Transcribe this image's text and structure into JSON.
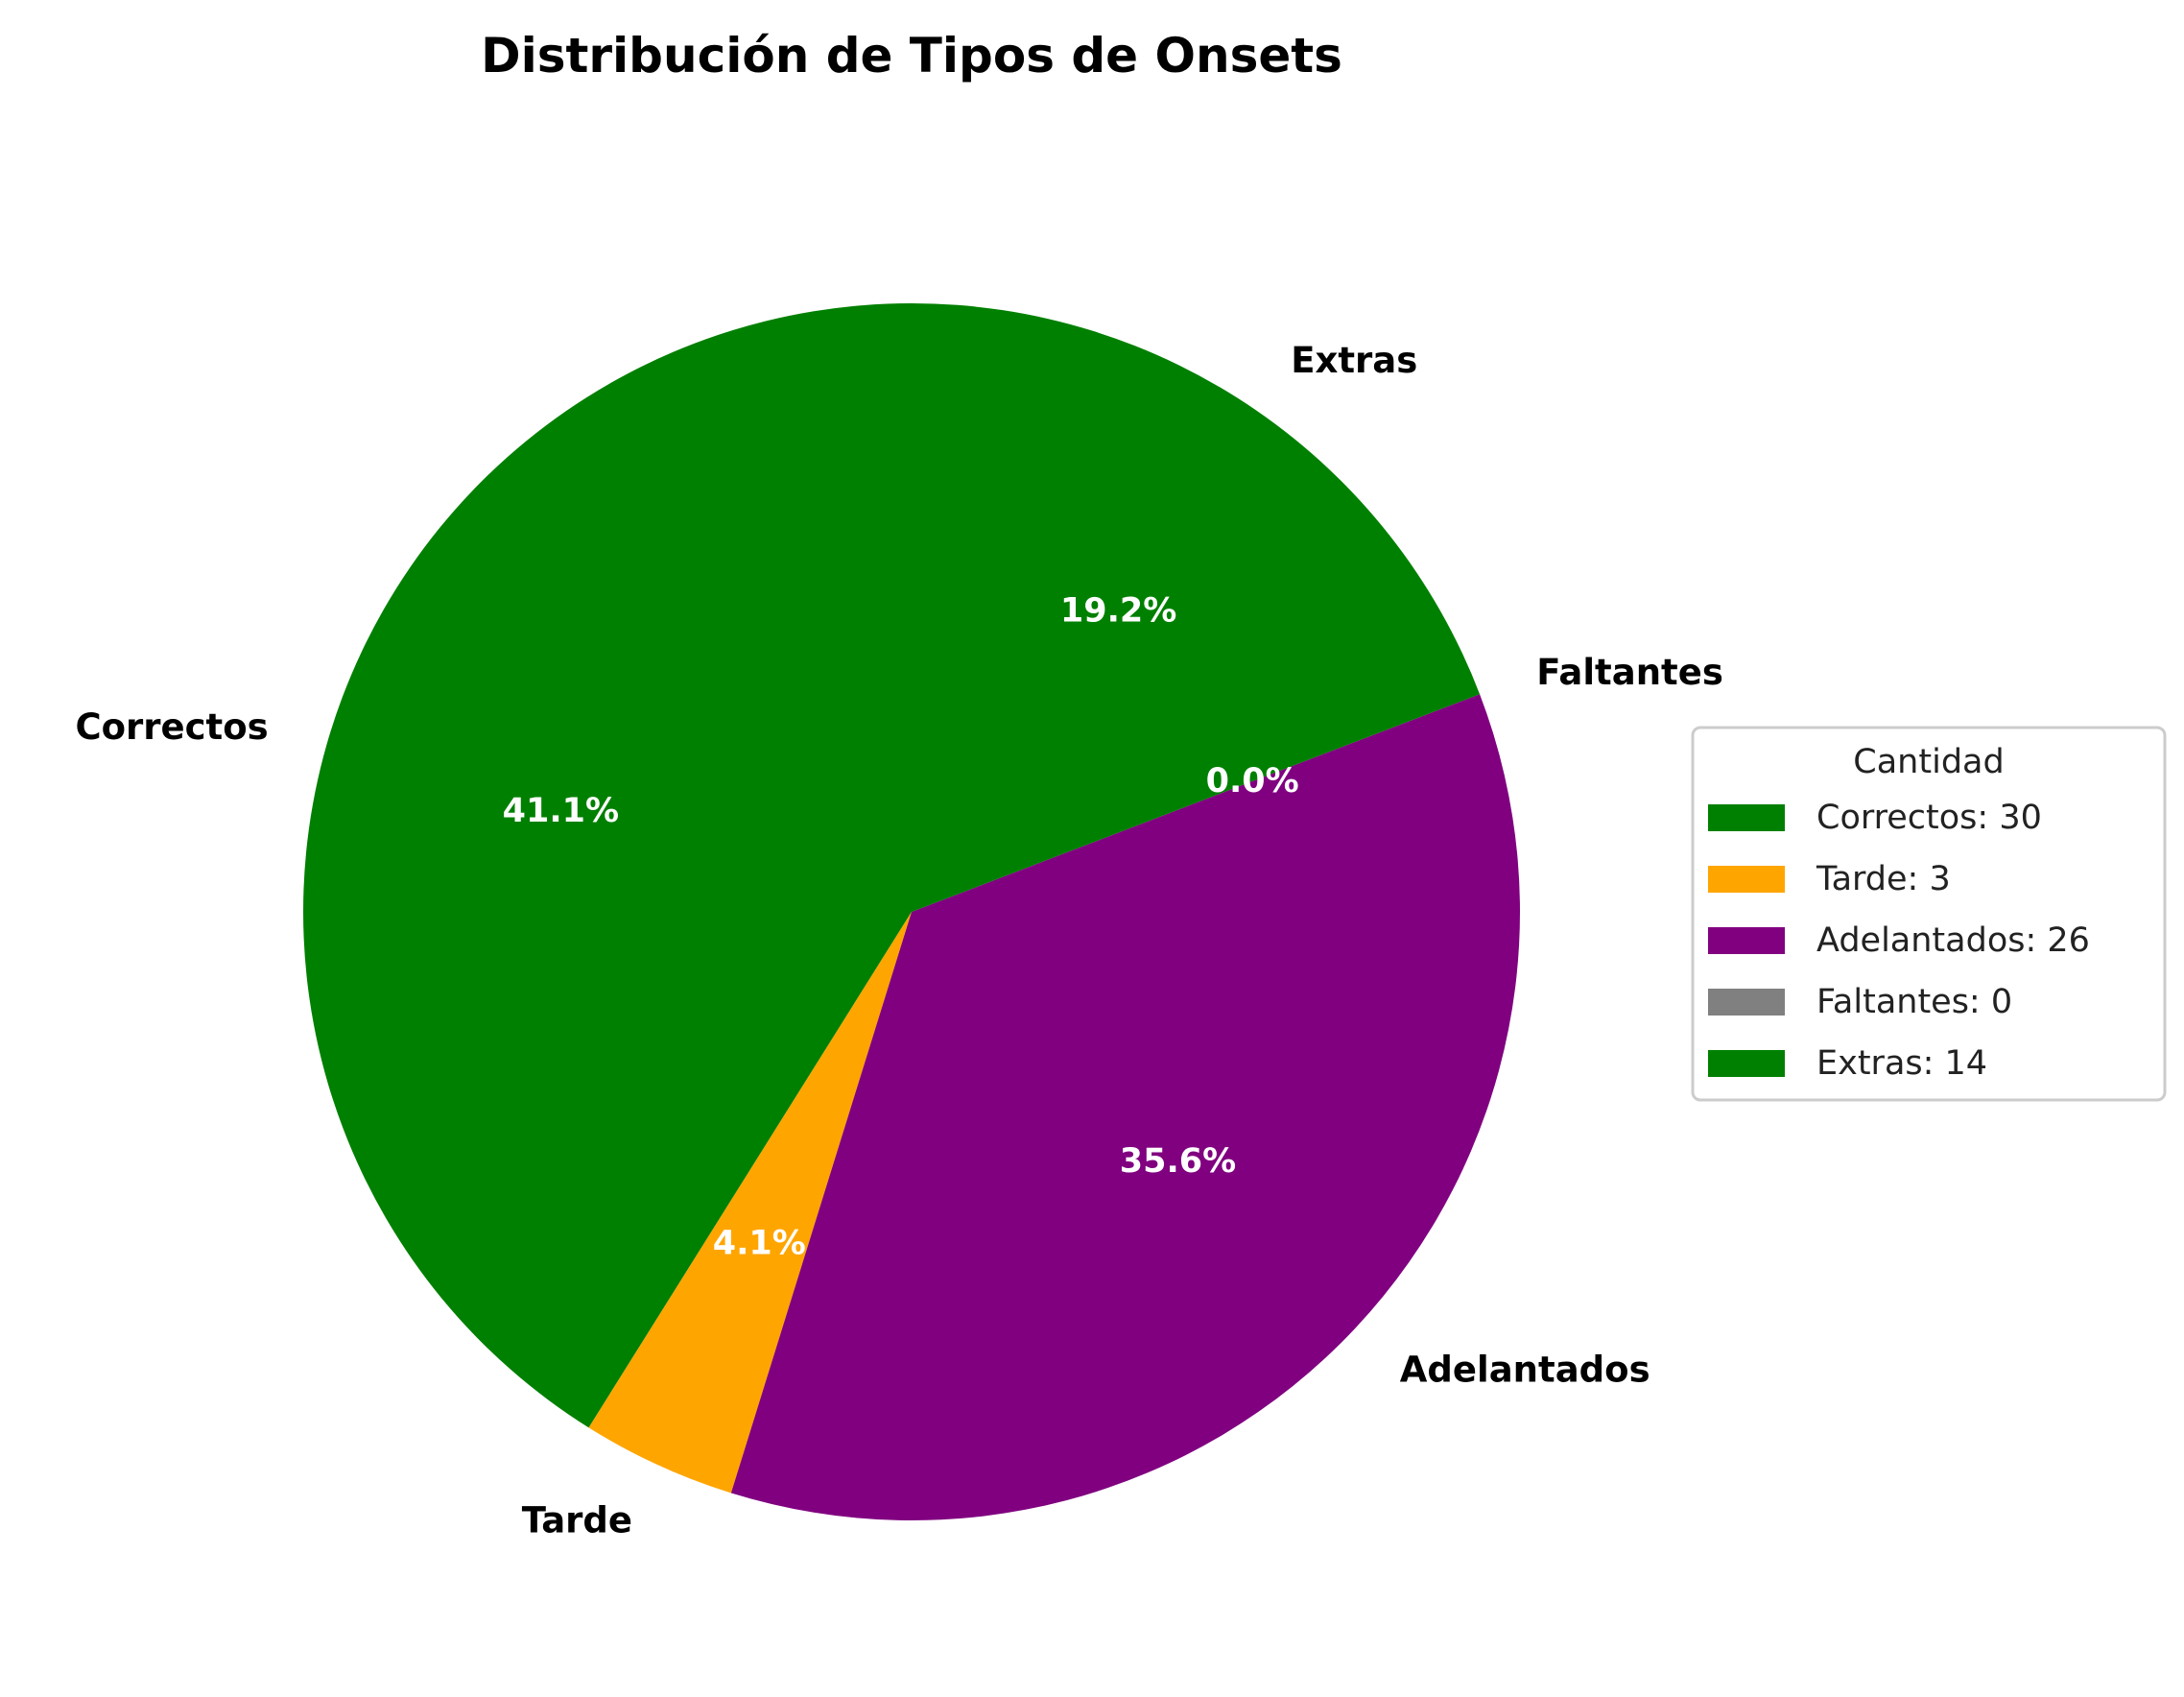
{
  "chart_data": {
    "type": "pie",
    "title": "Distribución de Tipos de Onsets",
    "categories": [
      "Correctos",
      "Tarde",
      "Adelantados",
      "Faltantes",
      "Extras"
    ],
    "values": [
      30,
      3,
      26,
      0,
      14
    ],
    "percent_labels": [
      "41.1%",
      "4.1%",
      "35.6%",
      "0.0%",
      "19.2%"
    ],
    "colors": [
      "#008000",
      "#FFA500",
      "#800080",
      "#808080",
      "#008000"
    ],
    "start_angle_deg": 90,
    "direction": "counterclockwise",
    "legend": {
      "title": "Cantidad",
      "placement": "right",
      "entries": [
        "Correctos: 30",
        "Tarde: 3",
        "Adelantados: 26",
        "Faltantes: 0",
        "Extras: 14"
      ]
    }
  }
}
